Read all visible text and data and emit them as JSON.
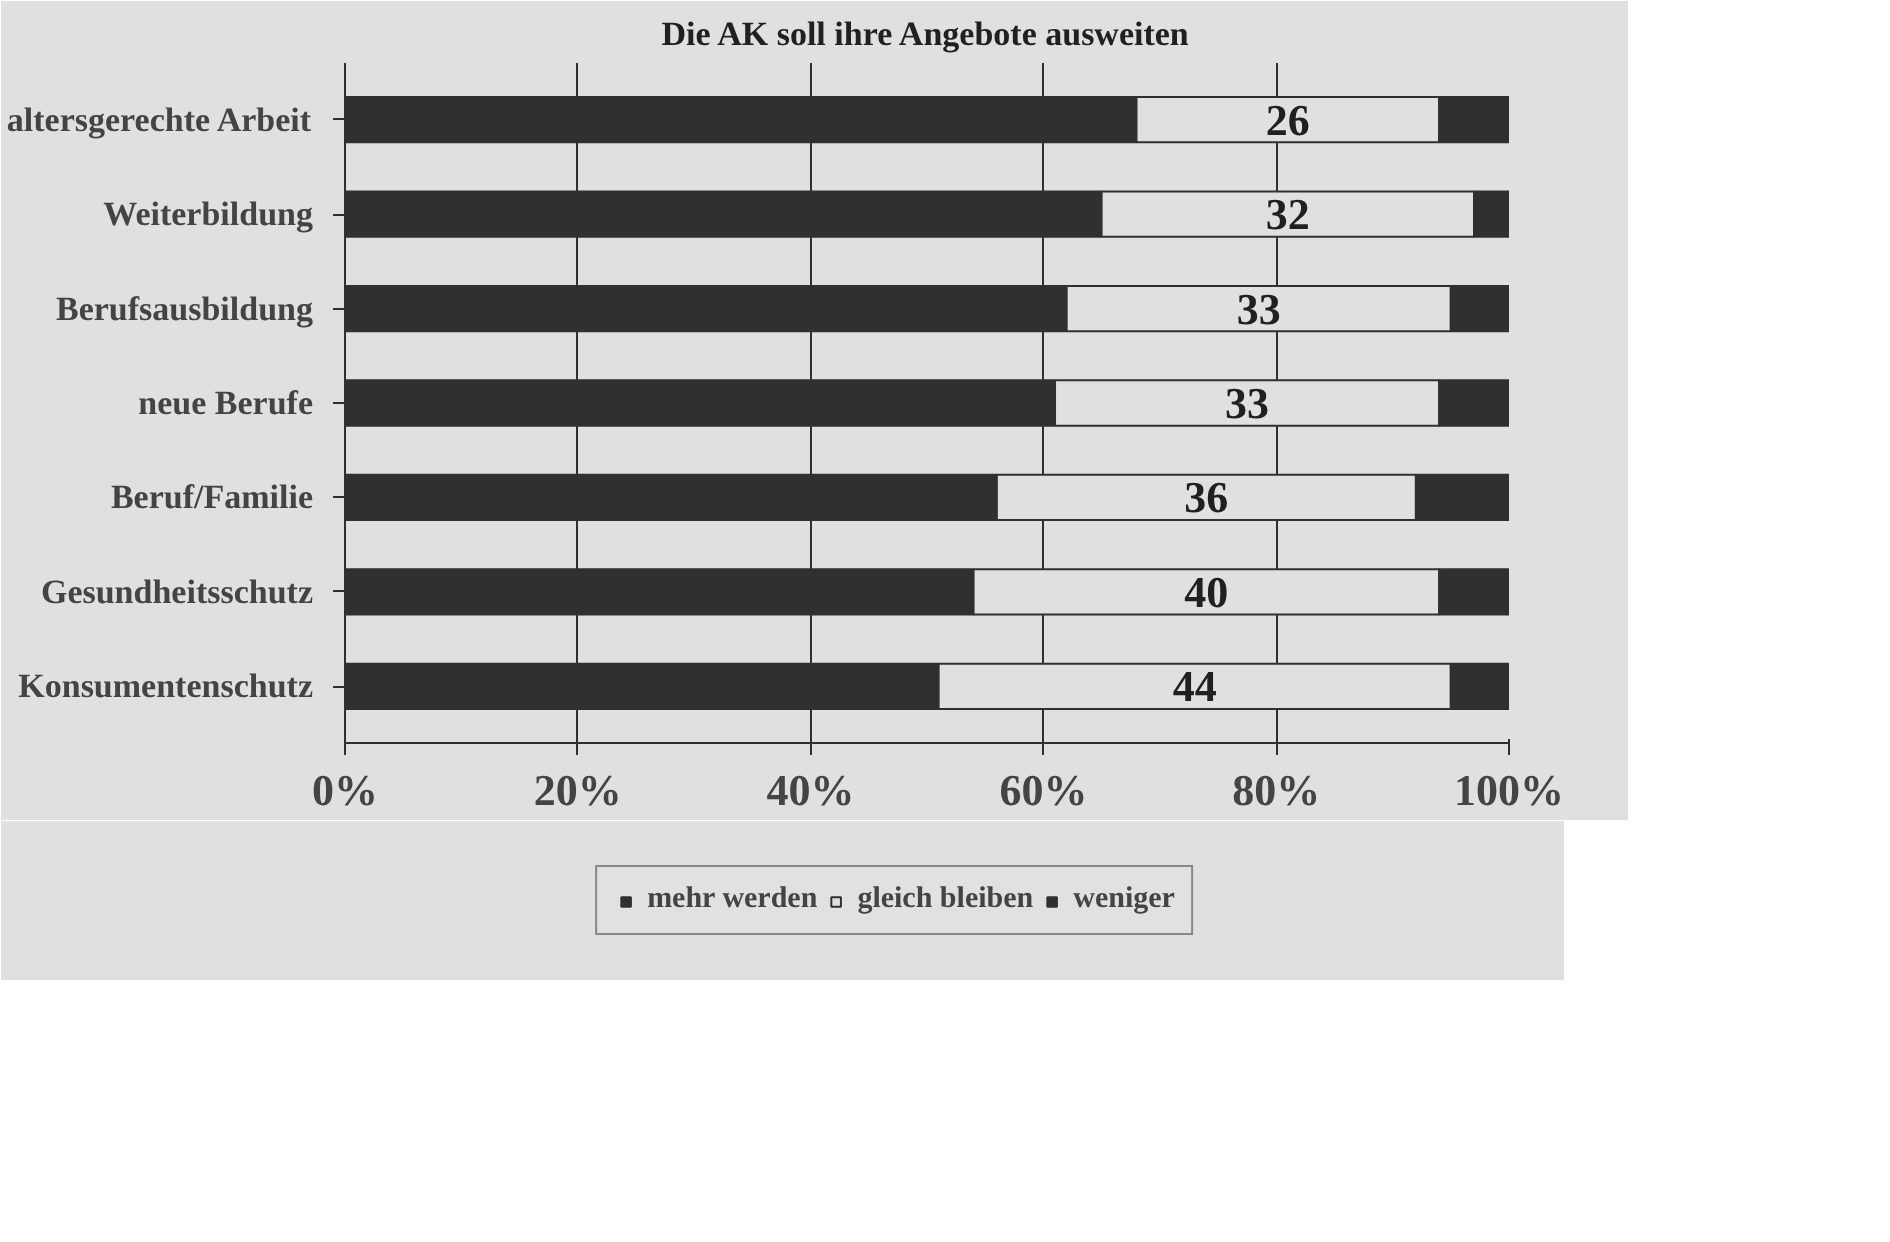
{
  "chart_data": {
    "type": "bar",
    "orientation": "horizontal",
    "stacked": true,
    "title": "Die AK soll ihre Angebote ausweiten",
    "categories": [
      "altersgerechte Arbeit",
      "Weiterbildung",
      "Berufsausbildung",
      "neue Berufe",
      "Beruf/Familie",
      "Gesundheitsschutz",
      "Konsumentenschutz"
    ],
    "series": [
      {
        "name": "mehr werden",
        "color": "#303030",
        "values": [
          68,
          65,
          62,
          61,
          56,
          54,
          51
        ]
      },
      {
        "name": "gleich bleiben",
        "color": "#e0e0e0",
        "values": [
          26,
          32,
          33,
          33,
          36,
          40,
          44
        ],
        "value_labels": [
          "26",
          "32",
          "33",
          "33",
          "36",
          "40",
          "44"
        ]
      },
      {
        "name": "weniger",
        "color": "#303030",
        "values": [
          6,
          3,
          5,
          6,
          8,
          6,
          5
        ]
      }
    ],
    "xlim": [
      0,
      100
    ],
    "xticks": [
      {
        "value": 0,
        "label": "0%"
      },
      {
        "value": 20,
        "label": "20%"
      },
      {
        "value": 40,
        "label": "40%"
      },
      {
        "value": 60,
        "label": "60%"
      },
      {
        "value": 80,
        "label": "80%"
      },
      {
        "value": 100,
        "label": "100%"
      }
    ],
    "grid": "x",
    "legend": "bottom"
  }
}
